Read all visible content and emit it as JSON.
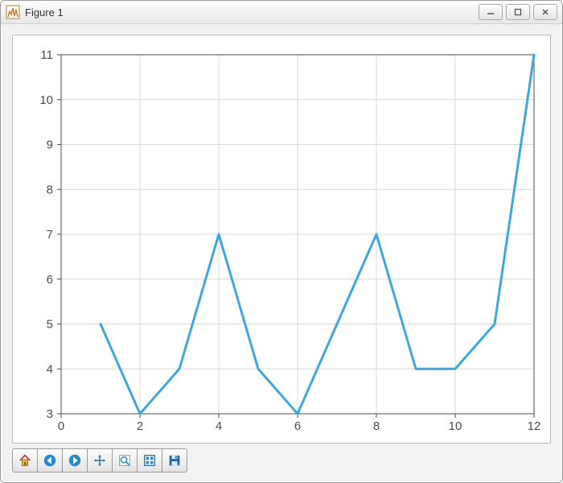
{
  "window": {
    "title": "Figure 1",
    "controls": {
      "minimize": "—",
      "maximize": "▢",
      "close": "✕"
    }
  },
  "chart": {
    "type": "line",
    "x": [
      1,
      2,
      3,
      4,
      5,
      6,
      7,
      8,
      9,
      10,
      11,
      12
    ],
    "y": [
      5,
      3,
      4,
      7,
      4,
      3,
      5,
      7,
      4,
      4,
      5,
      11
    ],
    "line_color": "#3fa7dd",
    "line_width": 3,
    "background_color": "#ffffff",
    "grid_color": "#d9d9d9",
    "axis_color": "#4d4d4d",
    "tick_font_size": 15,
    "tick_color": "#4d4d4d",
    "xlim": [
      0,
      12
    ],
    "ylim": [
      3,
      11
    ],
    "xticks": [
      0,
      2,
      4,
      6,
      8,
      10,
      12
    ],
    "yticks": [
      3,
      4,
      5,
      6,
      7,
      8,
      9,
      10,
      11
    ]
  },
  "toolbar": {
    "items": [
      "home",
      "back",
      "forward",
      "pan",
      "zoom",
      "configure",
      "save"
    ]
  }
}
